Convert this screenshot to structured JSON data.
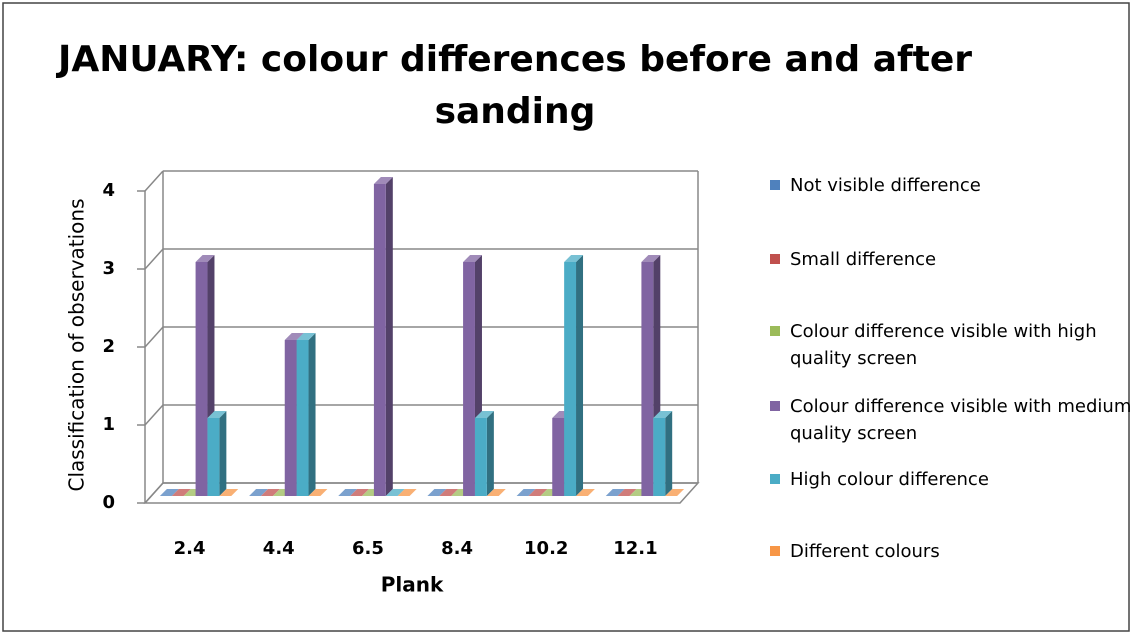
{
  "chart_data": {
    "type": "bar3d",
    "title": "JANUARY: colour differences before and after sanding",
    "xlabel": "Plank",
    "ylabel": "Classification of observations",
    "categories": [
      "2.4",
      "4.4",
      "6.5",
      "8.4",
      "10.2",
      "12.1"
    ],
    "series": [
      {
        "name": "Not visible difference",
        "color": "#4f81bd",
        "values": [
          0,
          0,
          0,
          0,
          0,
          0
        ]
      },
      {
        "name": "Small difference",
        "color": "#c0504d",
        "values": [
          0,
          0,
          0,
          0,
          0,
          0
        ]
      },
      {
        "name": "Colour difference  visible with high quality screen",
        "color": "#9bbb59",
        "values": [
          0,
          0,
          0,
          0,
          0,
          0
        ]
      },
      {
        "name": "Colour difference  visible with medium quality screen",
        "color": "#8064a2",
        "values": [
          3,
          2,
          4,
          3,
          1,
          3
        ]
      },
      {
        "name": "High colour difference",
        "color": "#4bacc6",
        "values": [
          1,
          2,
          0,
          1,
          3,
          1
        ]
      },
      {
        "name": "Different colours",
        "color": "#f79646",
        "values": [
          0,
          0,
          0,
          0,
          0,
          0
        ]
      }
    ],
    "ylim": [
      0,
      4
    ],
    "yticks": [
      0,
      1,
      2,
      3,
      4
    ],
    "grid": true,
    "legend": "right"
  }
}
